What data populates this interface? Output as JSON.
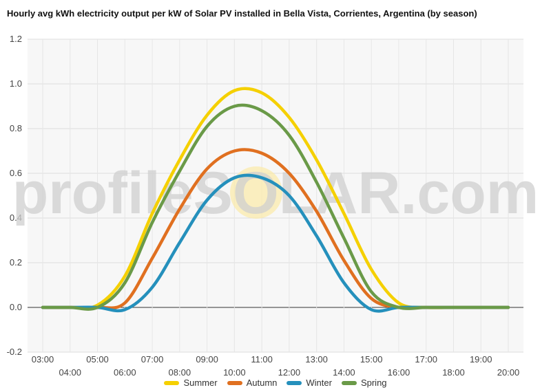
{
  "chart_data": {
    "type": "line",
    "title": "Hourly avg kWh electricity output per kW of Solar PV installed in Bella Vista, Corrientes, Argentina (by season)",
    "xlabel": "",
    "ylabel": "",
    "ylim": [
      -0.2,
      1.2
    ],
    "yticks": [
      "-0.2",
      "0.0",
      "0.2",
      "0.4",
      "0.6",
      "0.8",
      "1.0",
      "1.2"
    ],
    "x": [
      "03:00",
      "04:00",
      "05:00",
      "06:00",
      "07:00",
      "08:00",
      "09:00",
      "10:00",
      "11:00",
      "12:00",
      "13:00",
      "14:00",
      "15:00",
      "16:00",
      "17:00",
      "18:00",
      "19:00",
      "20:00"
    ],
    "grid": true,
    "legend_position": "bottom",
    "watermark": "profileSOLAR.com",
    "series": [
      {
        "name": "Summer",
        "color": "#f5d000",
        "values": [
          0.0,
          0.0,
          0.01,
          0.14,
          0.42,
          0.66,
          0.86,
          0.97,
          0.96,
          0.85,
          0.66,
          0.42,
          0.17,
          0.02,
          0.0,
          0.0,
          0.0,
          0.0
        ]
      },
      {
        "name": "Autumn",
        "color": "#e07020",
        "values": [
          0.0,
          0.0,
          0.0,
          0.02,
          0.22,
          0.44,
          0.62,
          0.7,
          0.69,
          0.6,
          0.43,
          0.21,
          0.04,
          0.0,
          0.0,
          0.0,
          0.0,
          0.0
        ]
      },
      {
        "name": "Winter",
        "color": "#2590bc",
        "values": [
          0.0,
          0.0,
          0.0,
          -0.01,
          0.09,
          0.29,
          0.48,
          0.58,
          0.58,
          0.5,
          0.32,
          0.11,
          -0.01,
          0.0,
          0.0,
          0.0,
          0.0,
          0.0
        ]
      },
      {
        "name": "Spring",
        "color": "#6a9a48",
        "values": [
          0.0,
          0.0,
          0.0,
          0.11,
          0.38,
          0.61,
          0.81,
          0.9,
          0.88,
          0.77,
          0.56,
          0.31,
          0.07,
          0.0,
          0.0,
          0.0,
          0.0,
          0.0
        ]
      }
    ]
  }
}
